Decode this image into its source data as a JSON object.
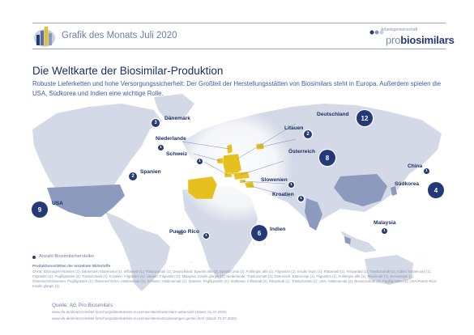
{
  "header": {
    "title": "Grafik des Monats Juli 2020",
    "logo_small": "Arbeitsgemeinschaft",
    "logo_pro": "pro",
    "logo_name": "biosimilars"
  },
  "title": "Die Weltkarte der Biosimilar-Produktion",
  "subtitle": "Robuste Lieferketten und hohe Versorgungssicherheit: Der Großteil der Herstellungsstätten von Biosimilars steht in Europa. Außerdem spielen die USA, Südkorea und Indien eine wichtige Rolle.",
  "colors": {
    "navy": "#243a78",
    "land": "#8c9bbd",
    "highlight": "#e6c01d",
    "accent_text": "#3f5aa3"
  },
  "markers": [
    {
      "id": "usa",
      "label": "USA",
      "count": "9"
    },
    {
      "id": "puerto-rico",
      "label": "Puerto Rico",
      "count": "1"
    },
    {
      "id": "spanien",
      "label": "Spanien",
      "count": "2"
    },
    {
      "id": "daenemark",
      "label": "Dänemark",
      "count": "3"
    },
    {
      "id": "niederlande",
      "label": "Niederlande",
      "count": "1"
    },
    {
      "id": "schweiz",
      "label": "Schweiz",
      "count": "1"
    },
    {
      "id": "deutschland",
      "label": "Deutschland",
      "count": "12"
    },
    {
      "id": "litauen",
      "label": "Litauen",
      "count": "2"
    },
    {
      "id": "oesterreich",
      "label": "Österreich",
      "count": "8"
    },
    {
      "id": "slowenien",
      "label": "Slowenien",
      "count": "1"
    },
    {
      "id": "kroatien",
      "label": "Kroatien",
      "count": "1"
    },
    {
      "id": "indien",
      "label": "Indien",
      "count": "6"
    },
    {
      "id": "china",
      "label": "China",
      "count": "1"
    },
    {
      "id": "suedkorea",
      "label": "Südkorea",
      "count": "4"
    },
    {
      "id": "malaysia",
      "label": "Malaysia",
      "count": "1"
    }
  ],
  "legend": "Anzahl Biosimilarhersteller",
  "notes": {
    "title": "Produktionsstätten der einzelnen Wirkstoffe",
    "body": "China: Ethanagern-Namien (1); Dänemark: Etanercept (1), Infliximab (1), Trastuzumab (1); Deutschland: Epoetin alfa (3), Epoetin zeta (2), Follitropin alfa (1), Filgrastim (1), Insulin lispro (1), Rituximab (1), Teriparatid (2), Trastuzumab (1); Indien: Etanercept (1), Filgrastim (1), Pegfilgrastim (2), Trastuzumab (1); Kroatien: Filgrastim (1); Litauen: Filgrastim (2); Malaysia: Insulin glargin (1); Niederlande: Trastuzumab (1); Österreich: Etanercept (1), Filgrastim (1), Follitropin alfa (1), Rituximab (1), Somatropin (1); Österreich/Slowenien: Pegfilgrastim (1); Österreich/USA: Adalimumab (1); Schweiz: Adalimumab (1); Spanien: Pegfilgrastim (2); Südkorea: Infliximab (2), Rituximab (1), Trastuzumab (1); USA: Adalimumab (2), Bevacizumab (2), Pegfilgrastim (1); USA/Puerto Rico: Insulin glargin (1)."
  },
  "sources": {
    "title": "Quelle: AG Pro Biosimilars",
    "line1": "www.vfa.de/de/arzneimittel-forschung/datenbanken-zu-arzneimitteln/biosimilars-uebersicht (Stand: 01.07.2020)",
    "line2": "www.vfa.de/de/arzneimittel-forschung/datenbanken-zu-arzneimitteln/amzulassungen-gentec.html (Stand: 01.07.2020)"
  }
}
